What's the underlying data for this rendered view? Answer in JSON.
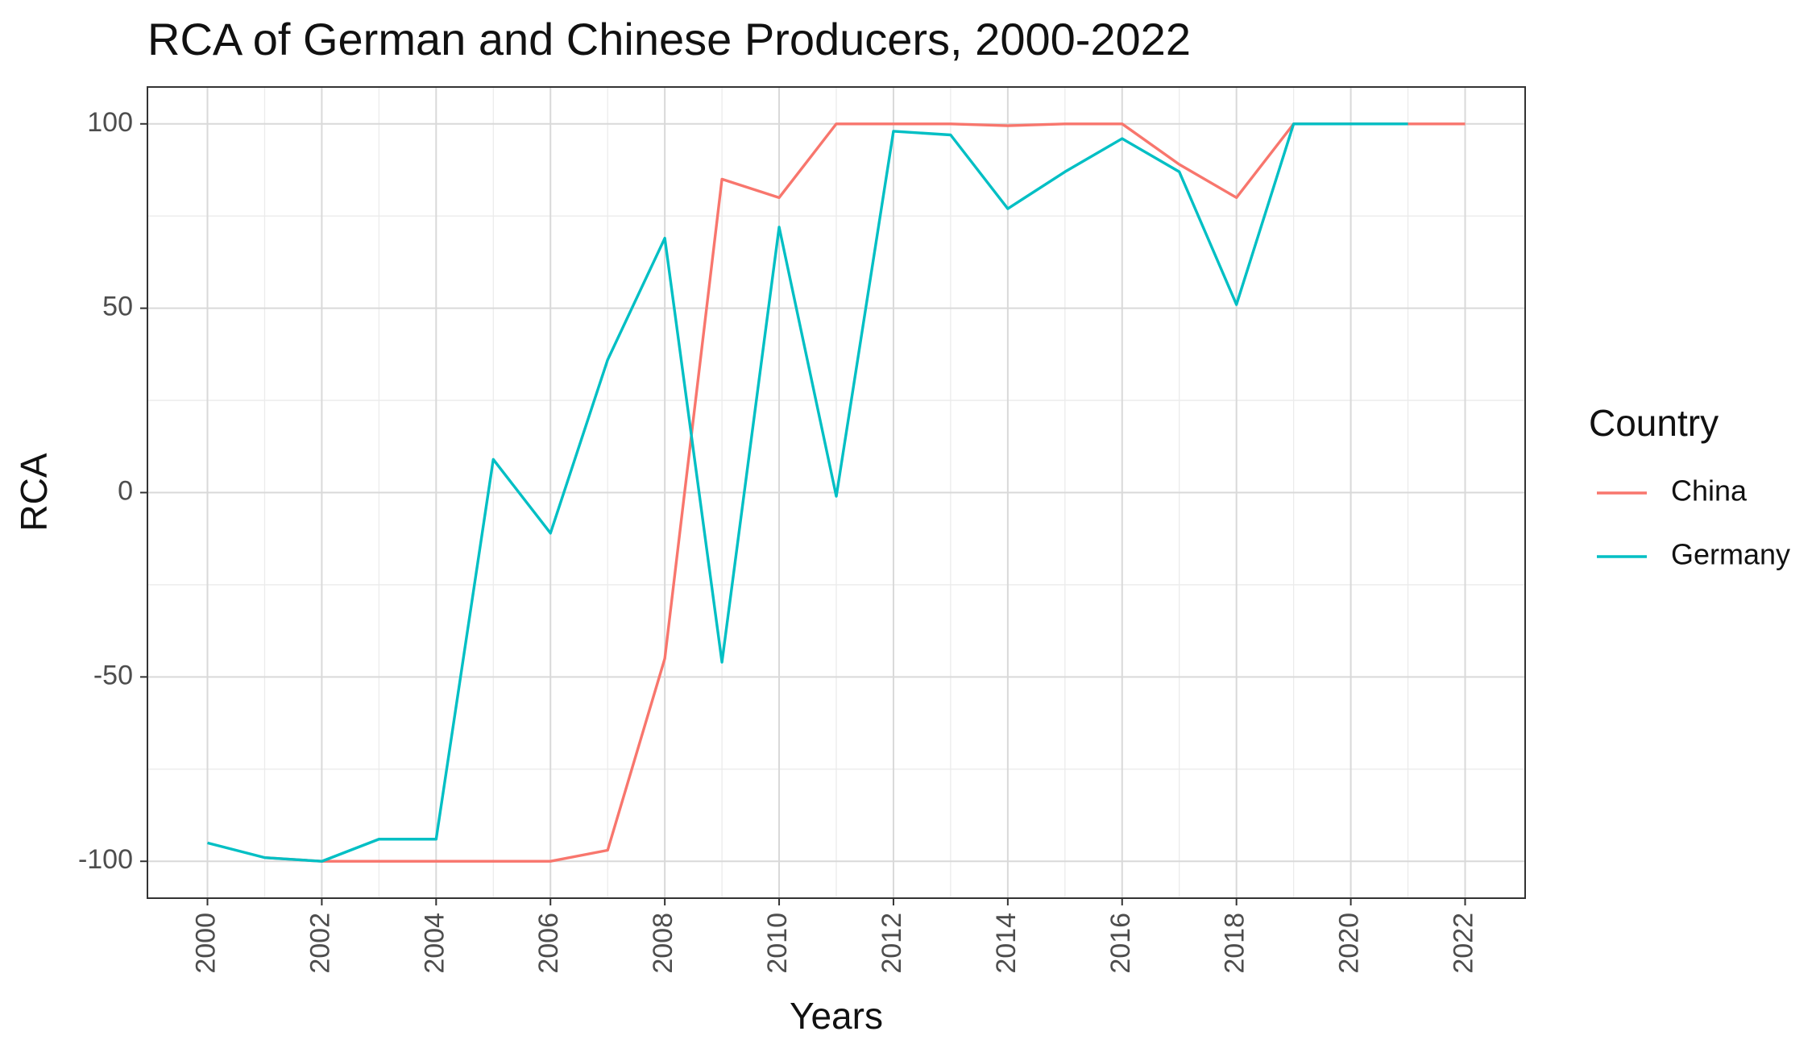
{
  "chart_data": {
    "type": "line",
    "title": "RCA of German and Chinese Producers, 2000-2022",
    "xlabel": "Years",
    "ylabel": "RCA",
    "xlim": [
      1998.95,
      2023.05
    ],
    "ylim": [
      -110,
      110
    ],
    "x_ticks": [
      "2000",
      "2002",
      "2004",
      "2006",
      "2008",
      "2010",
      "2012",
      "2014",
      "2016",
      "2018",
      "2020",
      "2022"
    ],
    "y_ticks": [
      "-100",
      "-50",
      "0",
      "50",
      "100"
    ],
    "grid": true,
    "legend": {
      "title": "Country",
      "position": "right"
    },
    "series": [
      {
        "name": "China",
        "color": "#F8766D",
        "x": [
          2001,
          2002,
          2003,
          2004,
          2005,
          2006,
          2007,
          2008,
          2009,
          2010,
          2011,
          2012,
          2013,
          2014,
          2015,
          2016,
          2017,
          2018,
          2019,
          2020,
          2021,
          2022
        ],
        "values": [
          -99,
          -100,
          -100,
          -100,
          -100,
          -100,
          -97,
          -45,
          85,
          80,
          100,
          100,
          100,
          99.5,
          100,
          100,
          89,
          80,
          100,
          100,
          100,
          100
        ]
      },
      {
        "name": "Germany",
        "color": "#00BFC4",
        "x": [
          2000,
          2001,
          2002,
          2003,
          2004,
          2005,
          2006,
          2007,
          2008,
          2009,
          2010,
          2011,
          2012,
          2013,
          2014,
          2015,
          2016,
          2017,
          2018,
          2019,
          2020,
          2021
        ],
        "values": [
          -95,
          -99,
          -100,
          -94,
          -94,
          9,
          -11,
          36,
          69,
          -46,
          72,
          -1,
          98,
          97,
          77,
          87,
          96,
          87,
          51,
          100,
          100,
          100
        ]
      }
    ]
  }
}
